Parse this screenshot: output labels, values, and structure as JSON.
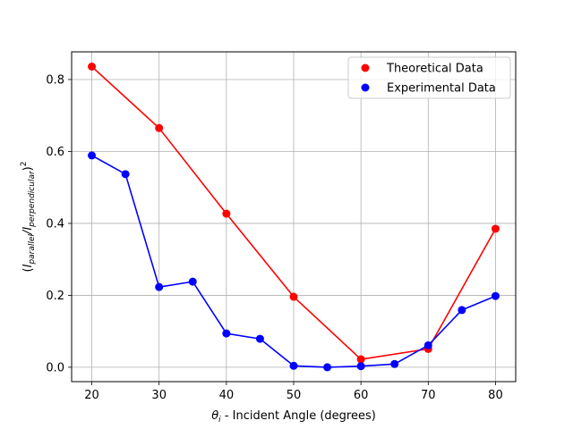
{
  "chart_data": {
    "type": "line",
    "xlabel": {
      "symbol": "θ",
      "subscript": "i",
      "text": " - Incident Angle (degrees)"
    },
    "ylabel": {
      "open": "(",
      "sub1": "parallel",
      "slash": "/",
      "sub2": "perpendicular",
      "close": ")",
      "exponent": "2",
      "base": "I"
    },
    "xlim": [
      17,
      83
    ],
    "ylim": [
      -0.04,
      0.877
    ],
    "xticks": [
      20,
      30,
      40,
      50,
      60,
      70,
      80
    ],
    "yticks": [
      0.0,
      0.2,
      0.4,
      0.6,
      0.8
    ],
    "xtick_labels": [
      "20",
      "30",
      "40",
      "50",
      "60",
      "70",
      "80"
    ],
    "ytick_labels": [
      "0.0",
      "0.2",
      "0.4",
      "0.6",
      "0.8"
    ],
    "grid": true,
    "legend_position": "top-right",
    "series": [
      {
        "name": "Theoretical Data",
        "color": "#ff0000",
        "x": [
          20,
          30,
          40,
          50,
          60,
          70,
          80
        ],
        "y": [
          0.836,
          0.665,
          0.427,
          0.196,
          0.022,
          0.051,
          0.385
        ]
      },
      {
        "name": "Experimental Data",
        "color": "#0000ff",
        "x": [
          20,
          25,
          30,
          35,
          40,
          45,
          50,
          55,
          60,
          65,
          70,
          75,
          80
        ],
        "y": [
          0.589,
          0.537,
          0.223,
          0.238,
          0.094,
          0.079,
          0.004,
          0.0,
          0.003,
          0.009,
          0.061,
          0.159,
          0.198
        ]
      }
    ]
  }
}
